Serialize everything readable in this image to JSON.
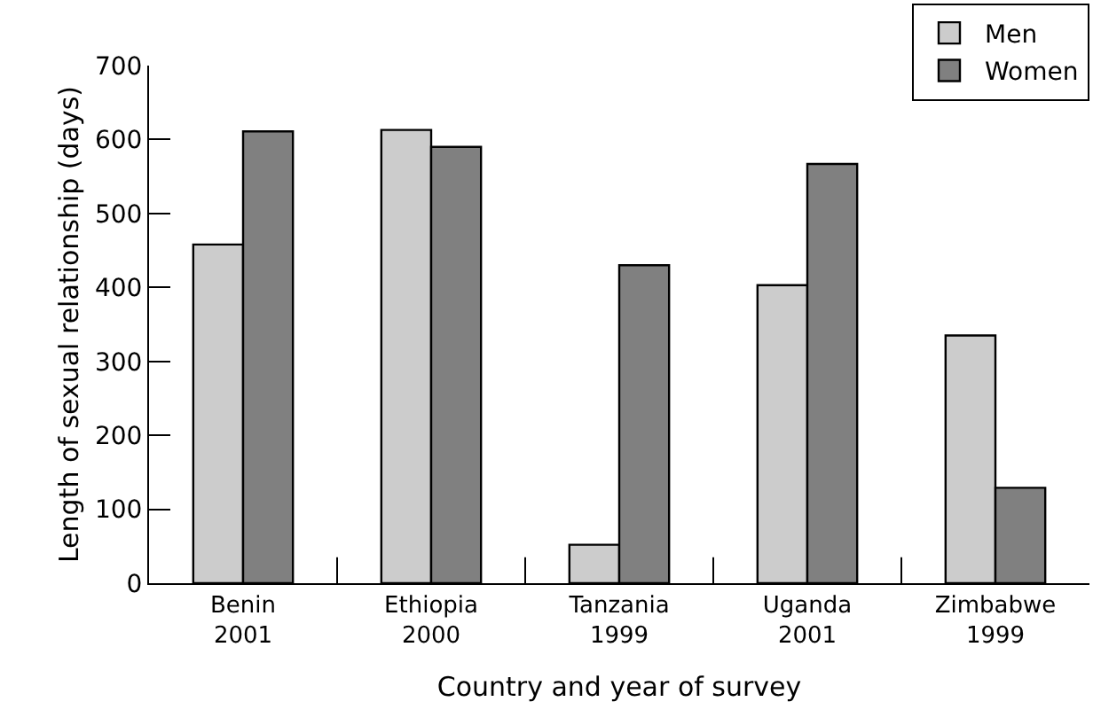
{
  "chart_data": {
    "type": "bar",
    "xlabel": "Country and year of survey",
    "ylabel": "Length of sexual relationship (days)",
    "categories": [
      "Benin\n2001",
      "Ethiopia\n2000",
      "Tanzania\n1999",
      "Uganda\n2001",
      "Zimbabwe\n1999"
    ],
    "series": [
      {
        "name": "Men",
        "color": "#cccccc",
        "values": [
          458,
          613,
          52,
          403,
          335
        ]
      },
      {
        "name": "Women",
        "color": "#808080",
        "values": [
          611,
          590,
          430,
          567,
          129
        ]
      }
    ],
    "ylim": [
      0,
      700
    ],
    "yticks": [
      0,
      100,
      200,
      300,
      400,
      500,
      600,
      700
    ],
    "grid": false,
    "legend": "top right"
  }
}
